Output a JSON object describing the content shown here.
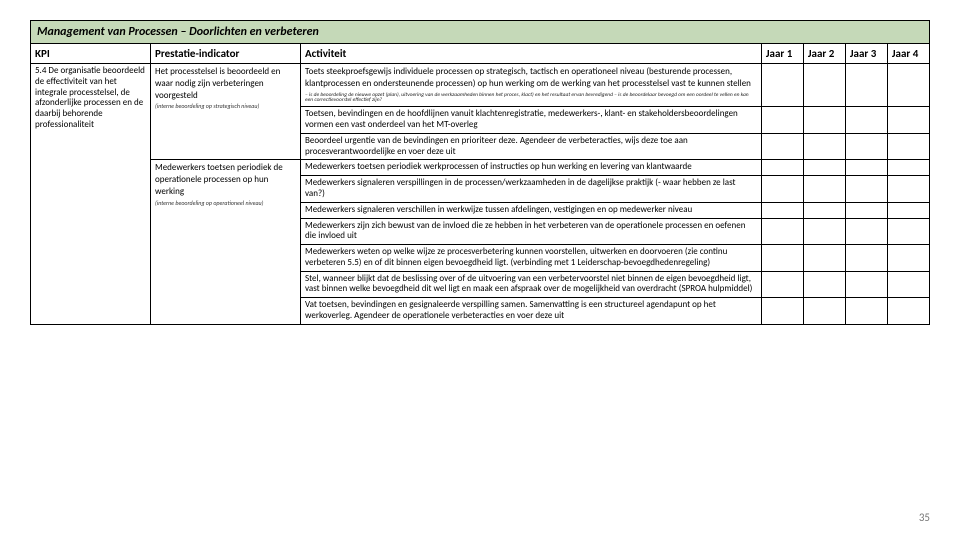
{
  "title": "Management van Processen – Doorlichten en verbeteren",
  "headers": {
    "kpi": "KPI",
    "pi": "Prestatie-indicator",
    "activity": "Activiteit",
    "y1": "Jaar 1",
    "y2": "Jaar 2",
    "y3": "Jaar 3",
    "y4": "Jaar 4"
  },
  "kpi": "5.4 De organisatie beoordeeld de effectiviteit van het integrale processtelsel, de afzonderlijke processen en de daarbij behorende professionaliteit",
  "pi1": "Het processtelsel is beoordeeld en waar nodig zijn verbeteringen voorgesteld",
  "pi1_note": "(interne beoordeling op strategisch niveau)",
  "pi2": "Medewerkers toetsen periodiek de operationele processen op hun werking",
  "pi2_note": "(interne beoordeling op operationeel niveau)",
  "act1": "Toets steekproefsgewijs individuele processen op strategisch, tactisch en operationeel niveau (besturende processen, klantprocessen en ondersteunende processen) op hun werking om de werking van het processtelsel vast te kunnen stellen",
  "act1_sub": "– is de beoordeling de nieuwe opzet (plan), uitvoering van de werkzaamheden binnen het proces, klact) en het resultaat ervan bevredigend\n– is de beoordelaar bevoegd om een oordeel te vellen en kan een correctievoorstel effectief zijn?",
  "act2": "Toetsen, bevindingen en de hoofdlijnen vanuit klachtenregistratie, medewerkers-, klant- en stakeholdersbeoordelingen vormen een vast onderdeel van het MT-overleg",
  "act3": "Beoordeel urgentie van de bevindingen en prioriteer deze. Agendeer de verbeteracties, wijs deze toe aan procesverantwoordelijke en voer deze uit",
  "act4": "Medewerkers toetsen periodiek werkprocessen of instructies op hun werking en levering van klantwaarde",
  "act5": "Medewerkers signaleren verspillingen in de processen/werkzaamheden in de dagelijkse praktijk (- waar hebben ze last van?)",
  "act6": "Medewerkers signaleren verschillen in werkwijze tussen afdelingen, vestigingen en op medewerker niveau",
  "act7": "Medewerkers zijn zich bewust van de invloed die ze hebben in het verbeteren van de operationele processen en oefenen die invloed uit",
  "act8": "Medewerkers weten op welke wijze ze procesverbetering kunnen voorstellen, uitwerken en doorvoeren (zie continu verbeteren 5.5) en of dit binnen eigen bevoegdheid ligt. (verbinding met 1 Leiderschap-bevoegdhedenregeling)",
  "act9": "Stel, wanneer blijkt dat de beslissing over of de uitvoering van een verbetervoorstel niet binnen de eigen bevoegdheid ligt, vast binnen welke bevoegdheid dit wel ligt en maak een afspraak over de mogelijkheid van overdracht (SPROA hulpmiddel)",
  "act10": "Vat toetsen, bevindingen en gesignaleerde verspilling samen. Samenvatting is een structureel agendapunt op het werkoverleg. Agendeer de operationele verbeteracties en voer deze uit",
  "page_number": "35",
  "colors": {
    "title_bg": "#c5d9b8",
    "border": "#000000",
    "page_num": "#777777"
  }
}
